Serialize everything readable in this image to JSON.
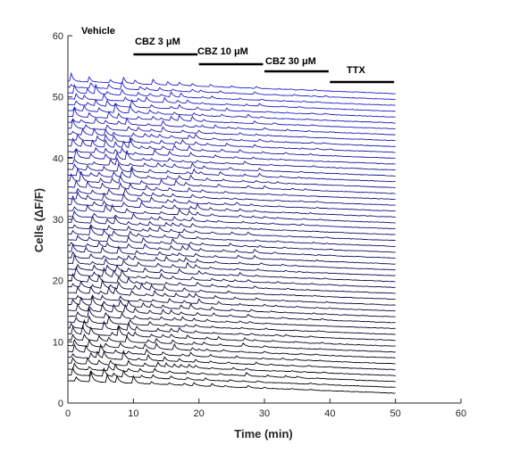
{
  "chart_data": {
    "type": "line",
    "xlabel": "Time (min)",
    "ylabel": "Cells (ΔF/F)",
    "xlim": [
      0,
      60
    ],
    "ylim": [
      0,
      60
    ],
    "xticks": [
      "0",
      "10",
      "20",
      "30",
      "40",
      "50",
      "60"
    ],
    "yticks": [
      "0",
      "10",
      "20",
      "30",
      "40",
      "50",
      "60"
    ],
    "grid": false,
    "n_traces": 52,
    "trace_time_range": [
      0,
      50
    ],
    "trace_color_start": "#000000",
    "trace_color_end": "#1f1fd6",
    "conditions": [
      {
        "label": "Vehicle",
        "start": 0,
        "end": 10
      },
      {
        "label": "CBZ 3 μM",
        "start": 10,
        "end": 20
      },
      {
        "label": "CBZ 10 μM",
        "start": 20,
        "end": 30
      },
      {
        "label": "CBZ 30 μM",
        "start": 30,
        "end": 40
      },
      {
        "label": "TTX",
        "start": 40,
        "end": 50
      }
    ]
  }
}
